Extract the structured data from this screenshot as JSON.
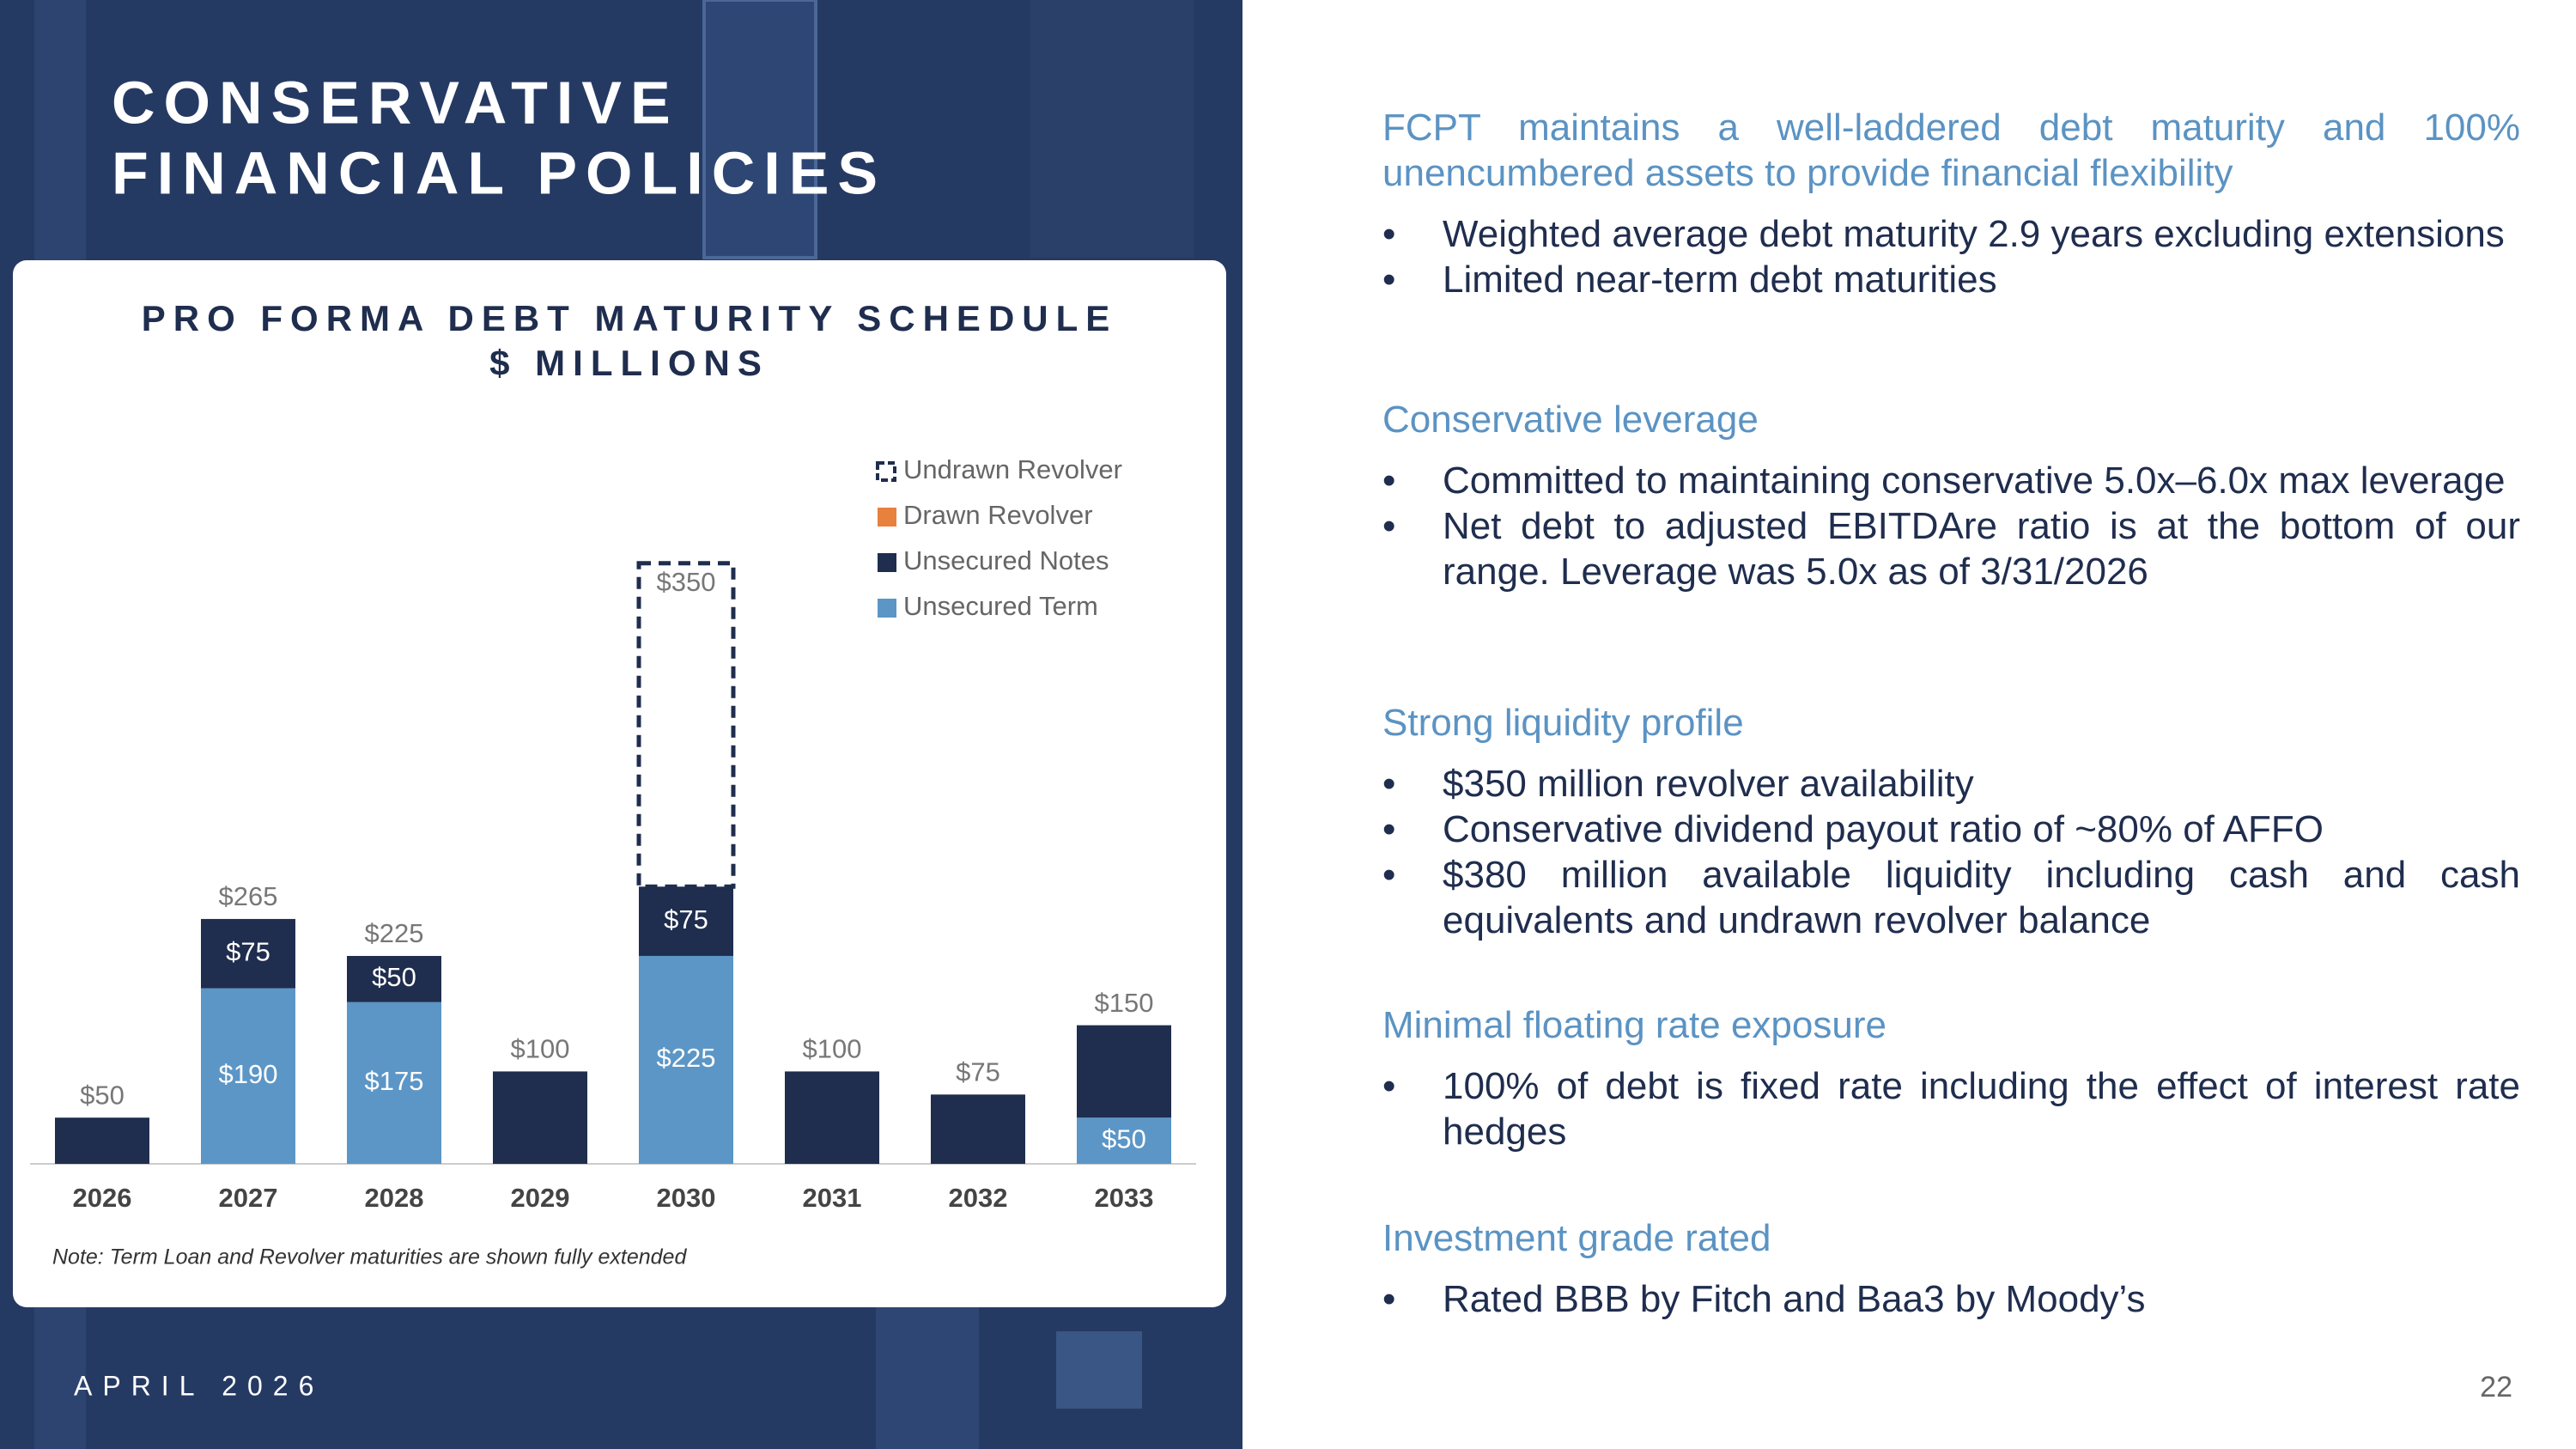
{
  "title": "CONSERVATIVE FINANCIAL POLICIES",
  "footer": "APRIL 2026",
  "page_number": "22",
  "chart_data": {
    "type": "stacked_bar",
    "title": "PRO FORMA DEBT MATURITY SCHEDULE",
    "subtitle": "$ MILLIONS",
    "note": "Note: Term Loan and Revolver maturities are shown fully extended",
    "categories": [
      "2026",
      "2027",
      "2028",
      "2029",
      "2030",
      "2031",
      "2032",
      "2033"
    ],
    "series": [
      {
        "name": "Undrawn Revolver",
        "color": "#1f2d4e",
        "style": "dashed",
        "values": [
          null,
          null,
          null,
          null,
          350,
          null,
          null,
          null
        ],
        "value_labels": [
          null,
          null,
          null,
          null,
          "$350",
          null,
          null,
          null
        ]
      },
      {
        "name": "Drawn Revolver",
        "color": "#e8803e",
        "values": [
          null,
          null,
          null,
          null,
          null,
          null,
          null,
          null
        ]
      },
      {
        "name": "Unsecured Notes",
        "color": "#1f2d4e",
        "values": [
          50,
          75,
          50,
          100,
          75,
          100,
          75,
          100
        ],
        "value_labels": [
          null,
          "$75",
          "$50",
          null,
          "$75",
          null,
          null,
          null
        ]
      },
      {
        "name": "Unsecured Term",
        "color": "#5b96c6",
        "values": [
          null,
          190,
          175,
          null,
          225,
          null,
          null,
          50
        ],
        "value_labels": [
          null,
          "$190",
          "$175",
          null,
          "$225",
          null,
          null,
          "$50"
        ]
      }
    ],
    "totals": [
      50,
      265,
      225,
      100,
      null,
      100,
      75,
      150
    ],
    "total_labels": [
      "$50",
      "$265",
      "$225",
      "$100",
      null,
      "$100",
      "$75",
      "$150"
    ],
    "ylim": [
      0,
      660
    ],
    "legend": "top-right"
  },
  "sections": [
    {
      "heading": "FCPT maintains a well-laddered debt maturity and 100% unencumbered assets to provide financial flexibility",
      "bullets": [
        "Weighted average debt maturity 2.9 years excluding extensions",
        "Limited near-term debt maturities"
      ]
    },
    {
      "heading": "Conservative leverage",
      "bullets": [
        "Committed to maintaining conservative 5.0x–6.0x max leverage",
        "Net debt to adjusted EBITDAre ratio is at the bottom of our range. Leverage was 5.0x as of 3/31/2026"
      ]
    },
    {
      "heading": "Strong liquidity profile",
      "bullets": [
        "$350 million revolver availability",
        "Conservative dividend payout ratio of  ~80% of AFFO",
        "$380 million available liquidity including cash and cash equivalents and undrawn revolver balance"
      ]
    },
    {
      "heading": "Minimal floating rate exposure",
      "bullets": [
        "100% of debt is fixed rate including the effect of interest rate hedges"
      ]
    },
    {
      "heading": "Investment grade rated",
      "bullets": [
        "Rated BBB by Fitch and Baa3 by Moody’s"
      ]
    }
  ]
}
